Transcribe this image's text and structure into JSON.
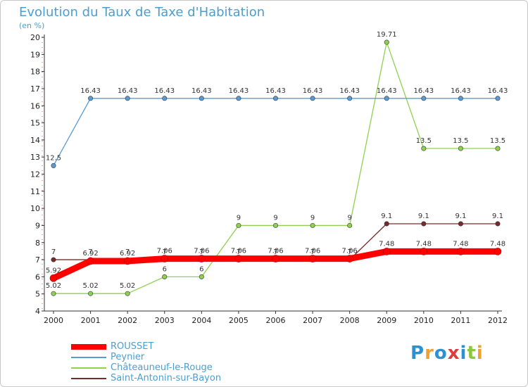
{
  "chart_data": {
    "type": "line",
    "title": "Evolution du Taux de Taxe d'Habitation",
    "unit_label": "(en %)",
    "x": [
      "2000",
      "2001",
      "2002",
      "2003",
      "2004",
      "2005",
      "2006",
      "2007",
      "2008",
      "2009",
      "2010",
      "2011",
      "2012"
    ],
    "ylim": [
      4,
      20
    ],
    "yticks": [
      4,
      5,
      6,
      7,
      8,
      9,
      10,
      11,
      12,
      13,
      14,
      15,
      16,
      17,
      18,
      19,
      20
    ],
    "grid": false,
    "legend_position": "bottom-left",
    "series": [
      {
        "name": "ROUSSET",
        "color": "#ff0000",
        "values": [
          5.92,
          6.92,
          6.92,
          7.06,
          7.06,
          7.06,
          7.06,
          7.06,
          7.06,
          7.48,
          7.48,
          7.48,
          7.48
        ],
        "labels": [
          "5.92",
          "6.92",
          "6.92",
          "7.06",
          "7.06",
          "7.06",
          "7.06",
          "7.06",
          "7.06",
          "7.48",
          "7.48",
          "7.48",
          "7.48"
        ]
      },
      {
        "name": "Peynier",
        "color": "#5b9bd5",
        "values": [
          12.5,
          16.43,
          16.43,
          16.43,
          16.43,
          16.43,
          16.43,
          16.43,
          16.43,
          16.43,
          16.43,
          16.43,
          16.43
        ],
        "labels": [
          "12.5",
          "16.43",
          "16.43",
          "16.43",
          "16.43",
          "16.43",
          "16.43",
          "16.43",
          "16.43",
          "16.43",
          "16.43",
          "16.43",
          "16.43"
        ]
      },
      {
        "name": "Châteauneuf-le-Rouge",
        "color": "#8fd14f",
        "values": [
          5.02,
          5.02,
          5.02,
          6,
          6,
          9,
          9,
          9,
          9,
          19.71,
          13.5,
          13.5,
          13.5
        ],
        "labels": [
          "5.02",
          "5.02",
          "5.02",
          "6",
          "6",
          "9",
          "9",
          "9",
          "9",
          "19.71",
          "13.5",
          "13.5",
          "13.5"
        ]
      },
      {
        "name": "Saint-Antonin-sur-Bayon",
        "color": "#7a2a2a",
        "values": [
          7,
          7,
          7,
          7,
          7,
          7,
          7,
          7,
          7,
          9.1,
          9.1,
          9.1,
          9.1
        ],
        "labels": [
          "7",
          "7",
          "7",
          "7",
          "7",
          "7",
          "7",
          "7",
          "7",
          "9.1",
          "9.1",
          "9.1",
          "9.1"
        ]
      }
    ]
  },
  "logo": {
    "letters": [
      "P",
      "r",
      "o",
      "x",
      "i",
      "t",
      "i"
    ],
    "colors": [
      "#2e8fd1",
      "#f0a030",
      "#2e8fd1",
      "#e03a3a",
      "#2e8fd1",
      "#8cc63f",
      "#f0a030"
    ]
  }
}
